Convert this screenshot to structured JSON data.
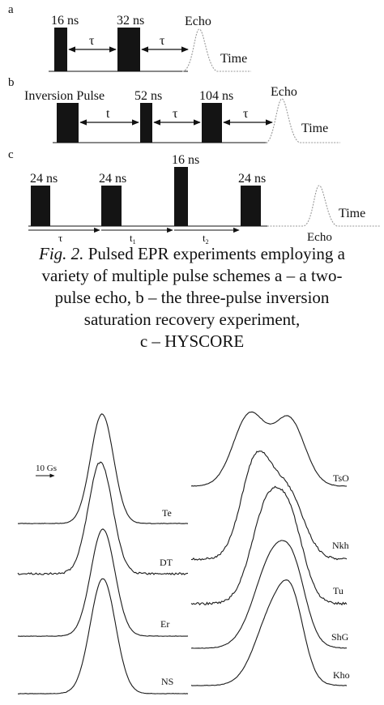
{
  "panels": {
    "a": {
      "label": "a",
      "pulse_labels": [
        "16 ns",
        "32 ns"
      ],
      "interval_labels": [
        "τ",
        "τ"
      ],
      "echo_label": "Echo",
      "time_label": "Time"
    },
    "b": {
      "label": "b",
      "pulse_labels": [
        "Inversion Pulse",
        "52 ns",
        "104 ns"
      ],
      "interval_labels": [
        "t",
        "τ",
        "τ"
      ],
      "echo_label": "Echo",
      "time_label": "Time"
    },
    "c": {
      "label": "c",
      "pulse_labels": [
        "24 ns",
        "24 ns",
        "16 ns",
        "24 ns"
      ],
      "interval_labels": [
        "τ",
        "t",
        "t"
      ],
      "interval_subscripts": [
        "",
        "1",
        "2"
      ],
      "echo_label": "Echo",
      "time_label": "Time"
    }
  },
  "caption": {
    "figref": "Fig. 2.",
    "line1_rest": " Pulsed EPR experiments employing a",
    "line2": "variety of multiple pulse schemes  a – a two-",
    "line3": "pulse  echo, b – the three-pulse inversion",
    "line4": "saturation recovery experiment,",
    "line5": "c – HYSCORE"
  },
  "spectra": {
    "scale_label": "10 Gs",
    "left_labels": [
      "Te",
      "DT",
      "Er",
      "NS"
    ],
    "right_labels": [
      "TsO",
      "Nkh",
      "Tu",
      "ShG",
      "Kho"
    ]
  }
}
